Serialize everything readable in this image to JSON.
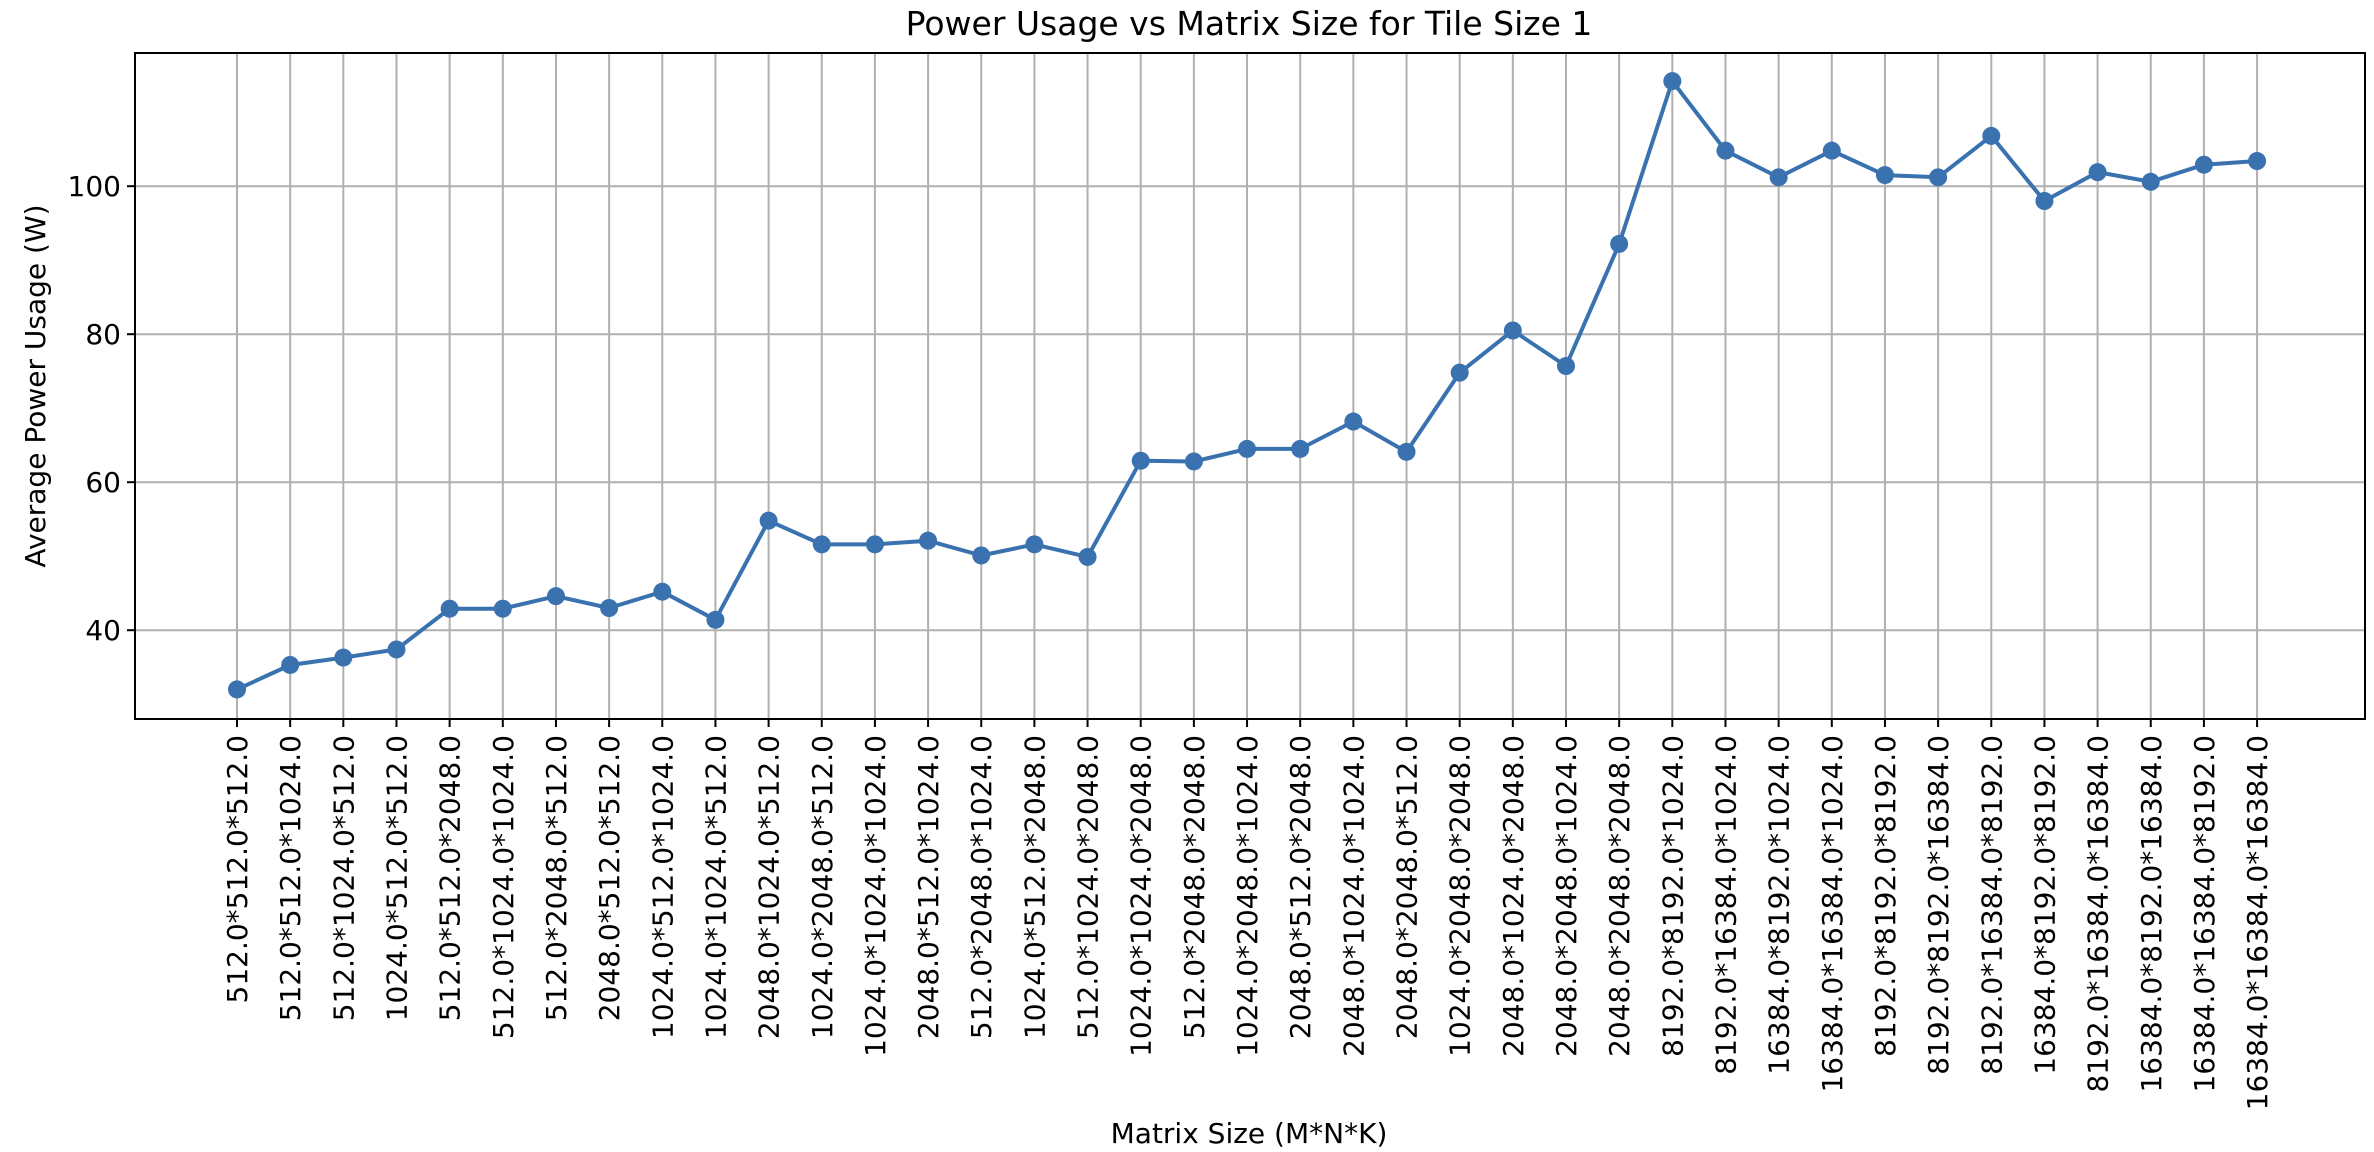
{
  "chart_data": {
    "type": "line",
    "title": "Power Usage vs Matrix Size for Tile Size 1",
    "xlabel": "Matrix Size (M*N*K)",
    "ylabel": "Average Power Usage (W)",
    "ylim": [
      28,
      118
    ],
    "yticks": [
      40,
      60,
      80,
      100
    ],
    "grid": true,
    "color": "#3a72b0",
    "categories": [
      "512.0*512.0*512.0",
      "512.0*512.0*1024.0",
      "512.0*1024.0*512.0",
      "1024.0*512.0*512.0",
      "512.0*512.0*2048.0",
      "512.0*1024.0*1024.0",
      "512.0*2048.0*512.0",
      "2048.0*512.0*512.0",
      "1024.0*512.0*1024.0",
      "1024.0*1024.0*512.0",
      "2048.0*1024.0*512.0",
      "1024.0*2048.0*512.0",
      "1024.0*1024.0*1024.0",
      "2048.0*512.0*1024.0",
      "512.0*2048.0*1024.0",
      "1024.0*512.0*2048.0",
      "512.0*1024.0*2048.0",
      "1024.0*1024.0*2048.0",
      "512.0*2048.0*2048.0",
      "1024.0*2048.0*1024.0",
      "2048.0*512.0*2048.0",
      "2048.0*1024.0*1024.0",
      "2048.0*2048.0*512.0",
      "1024.0*2048.0*2048.0",
      "2048.0*1024.0*2048.0",
      "2048.0*2048.0*1024.0",
      "2048.0*2048.0*2048.0",
      "8192.0*8192.0*1024.0",
      "8192.0*16384.0*1024.0",
      "16384.0*8192.0*1024.0",
      "16384.0*16384.0*1024.0",
      "8192.0*8192.0*8192.0",
      "8192.0*8192.0*16384.0",
      "8192.0*16384.0*8192.0",
      "16384.0*8192.0*8192.0",
      "8192.0*16384.0*16384.0",
      "16384.0*8192.0*16384.0",
      "16384.0*16384.0*8192.0",
      "16384.0*16384.0*16384.0"
    ],
    "values": [
      32.0,
      35.3,
      36.3,
      37.4,
      42.9,
      42.9,
      44.6,
      43.0,
      45.2,
      41.4,
      54.8,
      51.6,
      51.6,
      52.1,
      50.1,
      51.6,
      49.9,
      62.9,
      62.8,
      64.5,
      64.5,
      68.2,
      64.1,
      74.8,
      80.5,
      75.7,
      92.2,
      114.2,
      104.8,
      101.2,
      104.8,
      101.5,
      101.2,
      106.8,
      98.0,
      101.9,
      100.6,
      102.9,
      103.4
    ]
  }
}
